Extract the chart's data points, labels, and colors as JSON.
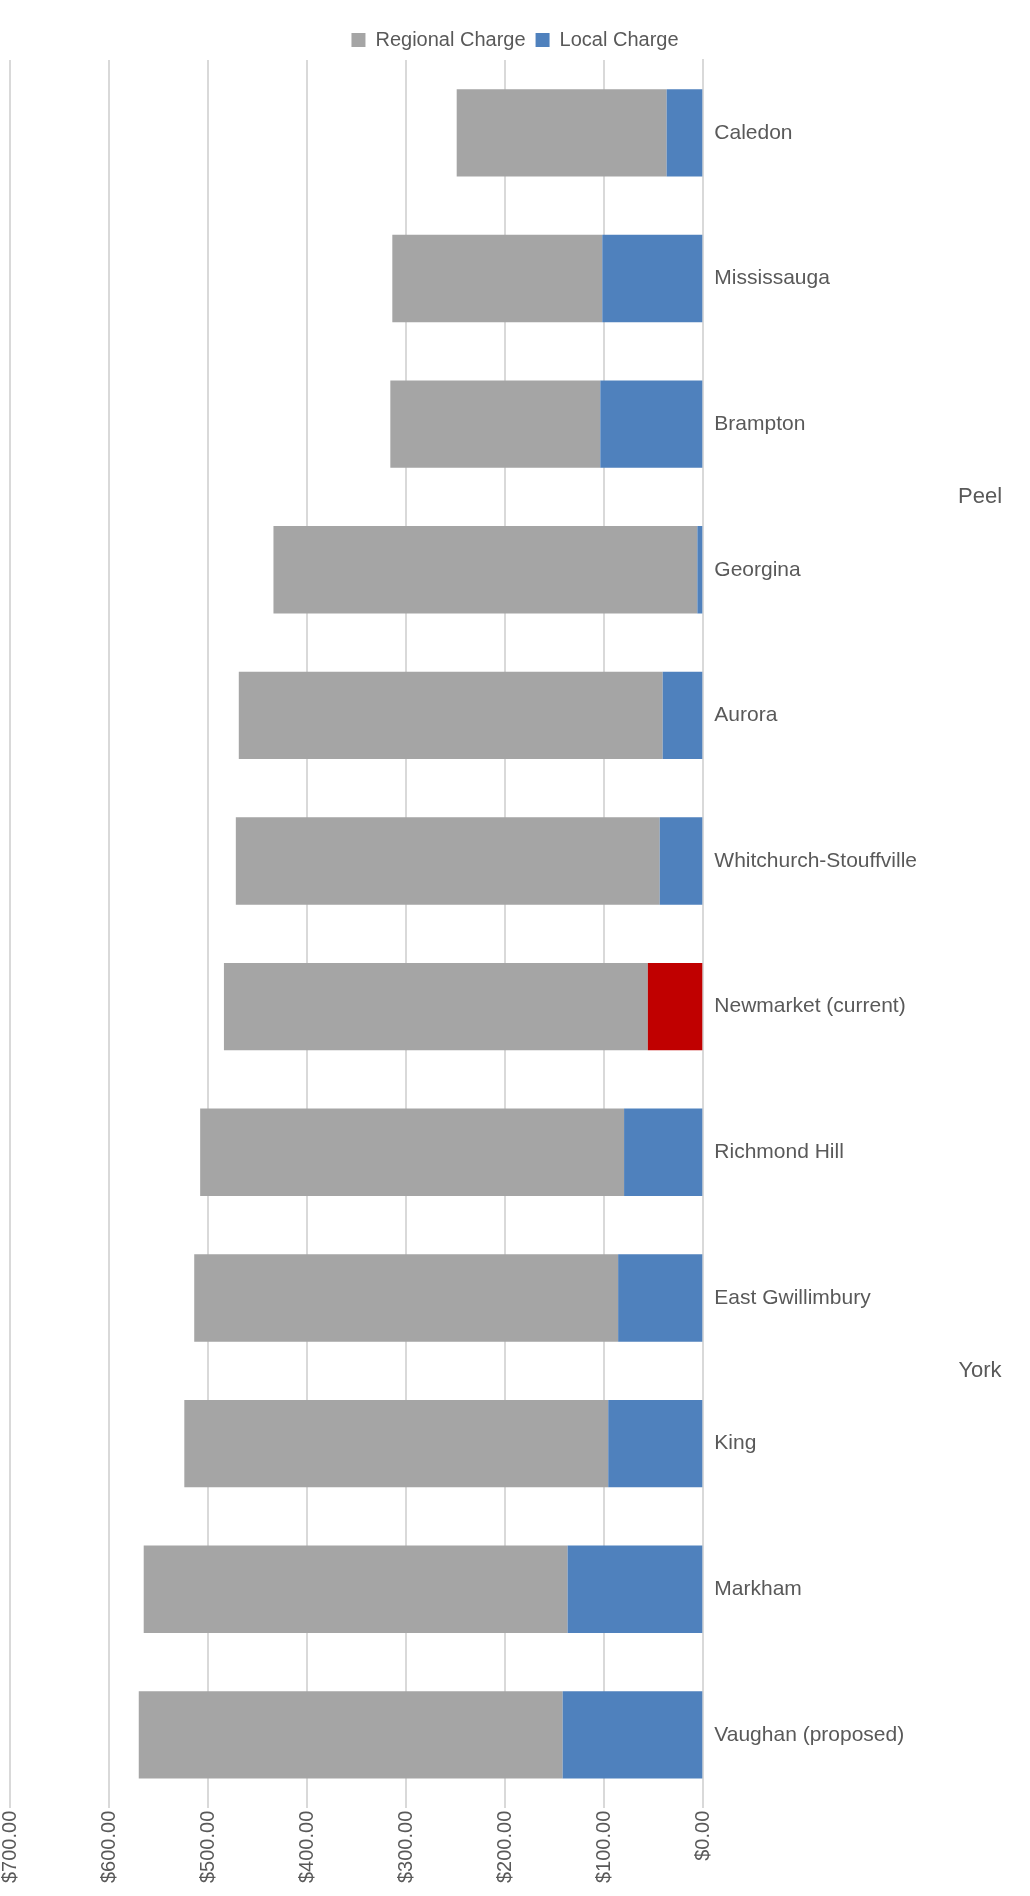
{
  "chart_data": {
    "type": "bar",
    "orientation": "horizontal",
    "stacked": true,
    "categories": [
      "Caledon",
      "Mississauga",
      "Brampton",
      "Georgina",
      "Aurora",
      "Whitchurch-Stouffville",
      "Newmarket (current)",
      "Richmond Hill",
      "East Gwillimbury",
      "King",
      "Markham",
      "Vaughan (proposed)"
    ],
    "series": [
      {
        "name": "Local Charge",
        "color": "#4f81bd",
        "colors": [
          "#4f81bd",
          "#4f81bd",
          "#4f81bd",
          "#4f81bd",
          "#4f81bd",
          "#4f81bd",
          "#c00000",
          "#4f81bd",
          "#4f81bd",
          "#4f81bd",
          "#4f81bd",
          "#4f81bd"
        ],
        "values": [
          37,
          102,
          104,
          6,
          41,
          44,
          56,
          80,
          86,
          96,
          137,
          142
        ]
      },
      {
        "name": "Regional Charge",
        "color": "#a5a5a5",
        "values": [
          212,
          212,
          212,
          428,
          428,
          428,
          428,
          428,
          428,
          428,
          428,
          428
        ]
      }
    ],
    "xlim": [
      700,
      0
    ],
    "xticks": [
      {
        "value": 0,
        "label": "$0.00"
      },
      {
        "value": 100,
        "label": "$100.00"
      },
      {
        "value": 200,
        "label": "$200.00"
      },
      {
        "value": 300,
        "label": "$300.00"
      },
      {
        "value": 400,
        "label": "$400.00"
      },
      {
        "value": 500,
        "label": "$500.00"
      },
      {
        "value": 600,
        "label": "$600.00"
      },
      {
        "value": 700,
        "label": "$700.00"
      }
    ],
    "grid": "x",
    "legend": "top",
    "annotations": [
      "Peel",
      "York"
    ]
  }
}
